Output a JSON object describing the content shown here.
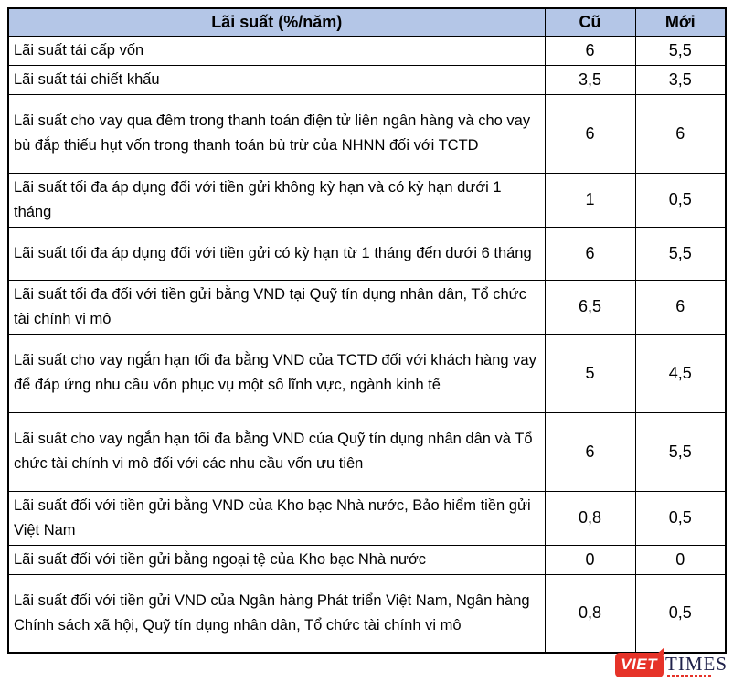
{
  "title": "Lãi suất (%/năm)",
  "chart_data": {
    "type": "table",
    "columns": [
      "Lãi suất (%/năm)",
      "Cũ",
      "Mới"
    ],
    "rows": [
      [
        "Lãi suất tái cấp vốn",
        "6",
        "5,5"
      ],
      [
        "Lãi suất tái chiết khấu",
        "3,5",
        "3,5"
      ],
      [
        "Lãi suất cho vay qua đêm trong thanh toán điện tử liên ngân hàng và cho vay bù đắp thiếu hụt vốn trong thanh toán bù trừ của NHNN đối với TCTD",
        "6",
        "6"
      ],
      [
        "Lãi suất tối đa áp dụng đối với tiền gửi không kỳ hạn và có kỳ hạn dưới 1 tháng",
        "1",
        "0,5"
      ],
      [
        "Lãi suất tối đa áp dụng đối với tiền gửi có kỳ hạn từ 1 tháng đến dưới 6 tháng",
        "6",
        "5,5"
      ],
      [
        "Lãi suất tối đa đối với tiền gửi bằng VND tại Quỹ tín dụng nhân dân, Tổ chức tài chính vi mô",
        "6,5",
        "6"
      ],
      [
        "Lãi suất cho vay ngắn hạn tối đa bằng VND của TCTD đối với khách hàng vay để đáp ứng nhu cầu vốn phục vụ một số lĩnh vực, ngành kinh tế",
        "5",
        "4,5"
      ],
      [
        "Lãi suất cho vay ngắn hạn tối đa bằng VND của Quỹ tín dụng nhân dân và Tổ chức tài chính vi mô đối với các nhu cầu vốn ưu tiên",
        "6",
        "5,5"
      ],
      [
        "Lãi suất đối với tiền gửi bằng VND của Kho bạc Nhà nước, Bảo hiểm tiền gửi Việt Nam",
        "0,8",
        "0,5"
      ],
      [
        "Lãi suất đối với tiền gửi bằng ngoại tệ của Kho bạc Nhà nước",
        "0",
        "0"
      ],
      [
        "Lãi suất đối với tiền gửi VND của Ngân hàng Phát triển Việt Nam, Ngân hàng Chính sách xã hội, Quỹ tín dụng nhân dân, Tổ chức tài chính vi mô",
        "0,8",
        "0,5"
      ]
    ],
    "header_bg": "#b4c6e7",
    "border_color": "#000000",
    "legend_position": "none",
    "grid": true
  },
  "logo": {
    "viet": "VIET",
    "times": "TIMES",
    "red": "#e63329",
    "navy": "#20224b"
  }
}
